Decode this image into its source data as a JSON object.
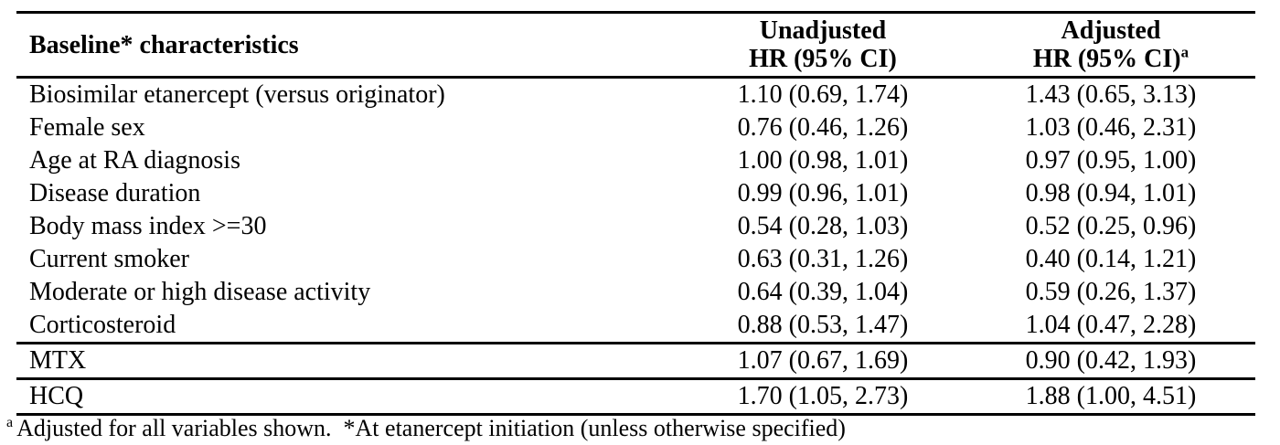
{
  "table": {
    "header": {
      "characteristics": "Baseline* characteristics",
      "unadjusted_line1": "Unadjusted",
      "unadjusted_line2": "HR (95% CI)",
      "adjusted_line1": "Adjusted",
      "adjusted_line2": "HR (95% CI)",
      "adjusted_superscript": "a"
    },
    "rows": [
      {
        "characteristic": "Biosimilar etanercept (versus originator)",
        "unadjusted": "1.10 (0.69, 1.74)",
        "adjusted": "1.43 (0.65, 3.13)"
      },
      {
        "characteristic": "Female sex",
        "unadjusted": "0.76 (0.46, 1.26)",
        "adjusted": "1.03 (0.46, 2.31)"
      },
      {
        "characteristic": "Age at RA diagnosis",
        "unadjusted": "1.00 (0.98, 1.01)",
        "adjusted": "0.97 (0.95, 1.00)"
      },
      {
        "characteristic": "Disease duration",
        "unadjusted": "0.99 (0.96, 1.01)",
        "adjusted": "0.98 (0.94, 1.01)"
      },
      {
        "characteristic": "Body mass index >=30",
        "unadjusted": "0.54 (0.28, 1.03)",
        "adjusted": "0.52 (0.25, 0.96)"
      },
      {
        "characteristic": "Current smoker",
        "unadjusted": "0.63 (0.31, 1.26)",
        "adjusted": "0.40 (0.14, 1.21)"
      },
      {
        "characteristic": "Moderate or high disease activity",
        "unadjusted": "0.64 (0.39, 1.04)",
        "adjusted": "0.59 (0.26, 1.37)"
      },
      {
        "characteristic": "Corticosteroid",
        "unadjusted": "0.88 (0.53, 1.47)",
        "adjusted": "1.04 (0.47, 2.28)"
      },
      {
        "characteristic": "MTX",
        "unadjusted": "1.07 (0.67, 1.69)",
        "adjusted": "0.90 (0.42, 1.93)"
      },
      {
        "characteristic": "HCQ",
        "unadjusted": "1.70 (1.05, 2.73)",
        "adjusted": "1.88 (1.00, 4.51)"
      }
    ],
    "footnote": {
      "marker": "a",
      "text": "Adjusted for all variables shown.  *At etanercept initiation (unless otherwise specified)"
    }
  },
  "colors": {
    "text": "#000000",
    "background": "#ffffff",
    "rule": "#000000"
  }
}
